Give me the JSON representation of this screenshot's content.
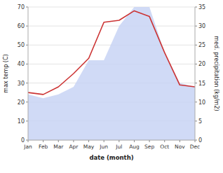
{
  "chart_data": {
    "type": "line",
    "x_label": "date (month)",
    "y_label": "max temp (C)",
    "y2_label": "med. precipitation (kg/m2)",
    "categories": [
      "Jan",
      "Feb",
      "Mar",
      "Apr",
      "May",
      "Jun",
      "Jul",
      "Aug",
      "Sep",
      "Oct",
      "Nov",
      "Dec"
    ],
    "series": [
      {
        "type": "area",
        "axis": "y2",
        "color": "#c8d4f5",
        "values": [
          12,
          11,
          12,
          14,
          21,
          21,
          30,
          35,
          35,
          23,
          15,
          14
        ]
      },
      {
        "type": "line",
        "color": "#cc3333",
        "values": [
          25,
          24,
          28,
          35,
          43,
          62,
          63,
          68,
          65,
          46,
          29,
          28
        ]
      }
    ],
    "ylim": [
      0,
      70
    ],
    "yticks": [
      0,
      10,
      20,
      30,
      40,
      50,
      60,
      70
    ],
    "y2lim": [
      0,
      35
    ],
    "y2ticks": [
      0,
      5,
      10,
      15,
      20,
      25,
      30,
      35
    ],
    "grid": true
  }
}
